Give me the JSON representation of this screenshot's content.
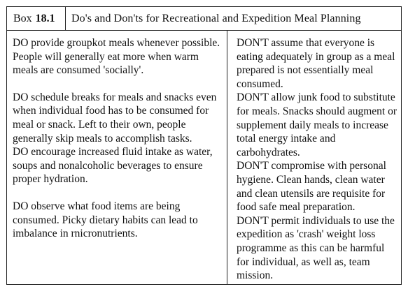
{
  "header": {
    "box_label": "Box",
    "box_number": "18.1",
    "title": "Do's and Don'ts for Recreational and Expedition Meal Planning"
  },
  "dos": [
    "DO provide groupkot meals whenever possible. People will generally eat more when warm meals are consumed 'socially'.",
    "DO schedule breaks for meals and snacks even when individual food has to be consumed for meal or snack. Left to their own, people generally skip meals to accomplish tasks.",
    "DO encourage increased fluid intake as water, soups and nonalcoholic beverages to ensure proper hydration.",
    "DO observe what food items are being consumed. Picky dietary habits can lead to imbalance in rnicronutrients."
  ],
  "donts": [
    "DON'T assume that everyone is eating adequately in group as a meal prepared is not essentially meal consumed.",
    "DON'T allow junk food to substitute for meals. Snacks should augment or supplement daily meals to increase total energy intake and carbohydrates.",
    "DON'T compromise with personal hygiene. Clean hands, clean water and clean utensils are requisite for food safe meal preparation.",
    "DON'T permit individuals to use the expedition as 'crash' weight loss programme as this can be harmful for individual, as well as, team mission."
  ]
}
